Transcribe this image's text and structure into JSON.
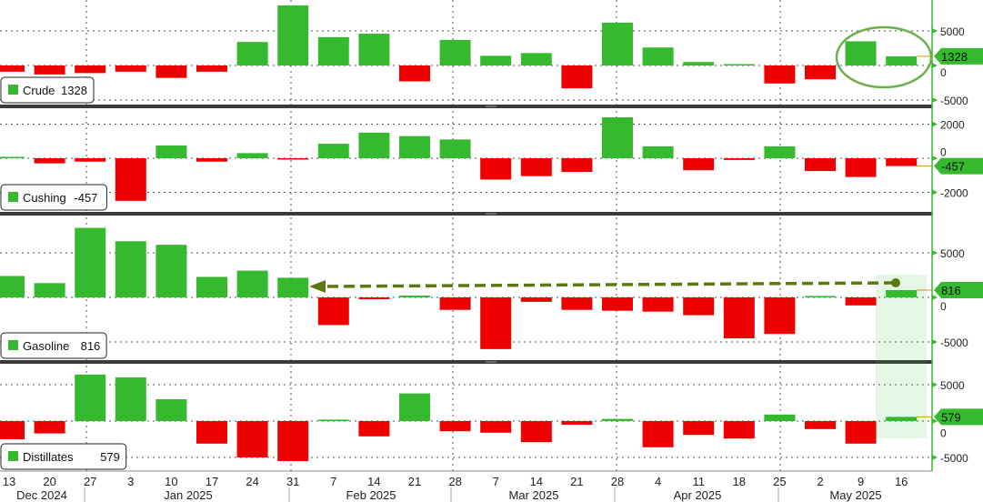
{
  "chart_data": {
    "type": "bar",
    "title": "",
    "x": [
      "13",
      "20",
      "27",
      "3",
      "10",
      "17",
      "24",
      "31",
      "7",
      "14",
      "21",
      "28",
      "7",
      "14",
      "21",
      "28",
      "4",
      "11",
      "18",
      "25",
      "2",
      "9",
      "16"
    ],
    "months": [
      "Dec 2024",
      "Jan 2025",
      "Feb 2025",
      "Mar 2025",
      "Apr 2025",
      "May 2025"
    ],
    "colors": {
      "positive": "#35b92f",
      "negative": "#ee0000",
      "annotation": "#6aaf4a",
      "arrow": "#5a7a10"
    },
    "panels": [
      {
        "name": "Crude",
        "last": "1328",
        "ylim": [
          -5500,
          9500
        ],
        "ticks": [
          "5000",
          "0",
          "-5000"
        ],
        "tick_values": [
          5000,
          0,
          -5000
        ],
        "values": [
          -900,
          -1300,
          -1100,
          -900,
          -1800,
          -900,
          3400,
          8700,
          4100,
          4600,
          -2300,
          3700,
          1400,
          1800,
          -3300,
          6200,
          2600,
          500,
          200,
          -2600,
          -2000,
          3500,
          1328
        ]
      },
      {
        "name": "Cushing",
        "last": "-457",
        "ylim": [
          -2600,
          2600
        ],
        "ticks": [
          "2000",
          "0",
          "-2000"
        ],
        "tick_values": [
          2000,
          0,
          -2000
        ],
        "values": [
          50,
          -300,
          -200,
          -2500,
          750,
          -200,
          300,
          -30,
          850,
          1500,
          1300,
          1100,
          -1250,
          -1050,
          -800,
          2400,
          700,
          -700,
          -100,
          700,
          -750,
          -1100,
          -457
        ]
      },
      {
        "name": "Gasoline",
        "last": "816",
        "ylim": [
          -7000,
          8500
        ],
        "ticks": [
          "5000",
          "0",
          "-5000"
        ],
        "tick_values": [
          5000,
          0,
          -5000
        ],
        "values": [
          2400,
          1600,
          7800,
          6300,
          5900,
          2300,
          3000,
          2200,
          -3100,
          -200,
          200,
          -1400,
          -5800,
          -500,
          -1400,
          -1500,
          -1600,
          -2000,
          -4600,
          -4100,
          150,
          -900,
          816
        ]
      },
      {
        "name": "Distillates",
        "last": "579",
        "ylim": [
          -6000,
          6800
        ],
        "ticks": [
          "5000",
          "0",
          "-5000"
        ],
        "tick_values": [
          5000,
          0,
          -5000
        ],
        "values": [
          -2500,
          -1700,
          6400,
          6000,
          3000,
          -3100,
          -5000,
          -5500,
          200,
          -2100,
          3800,
          -1400,
          -1600,
          -2900,
          -500,
          300,
          -3600,
          -1900,
          -2400,
          900,
          -1100,
          -3100,
          579
        ]
      }
    ]
  }
}
